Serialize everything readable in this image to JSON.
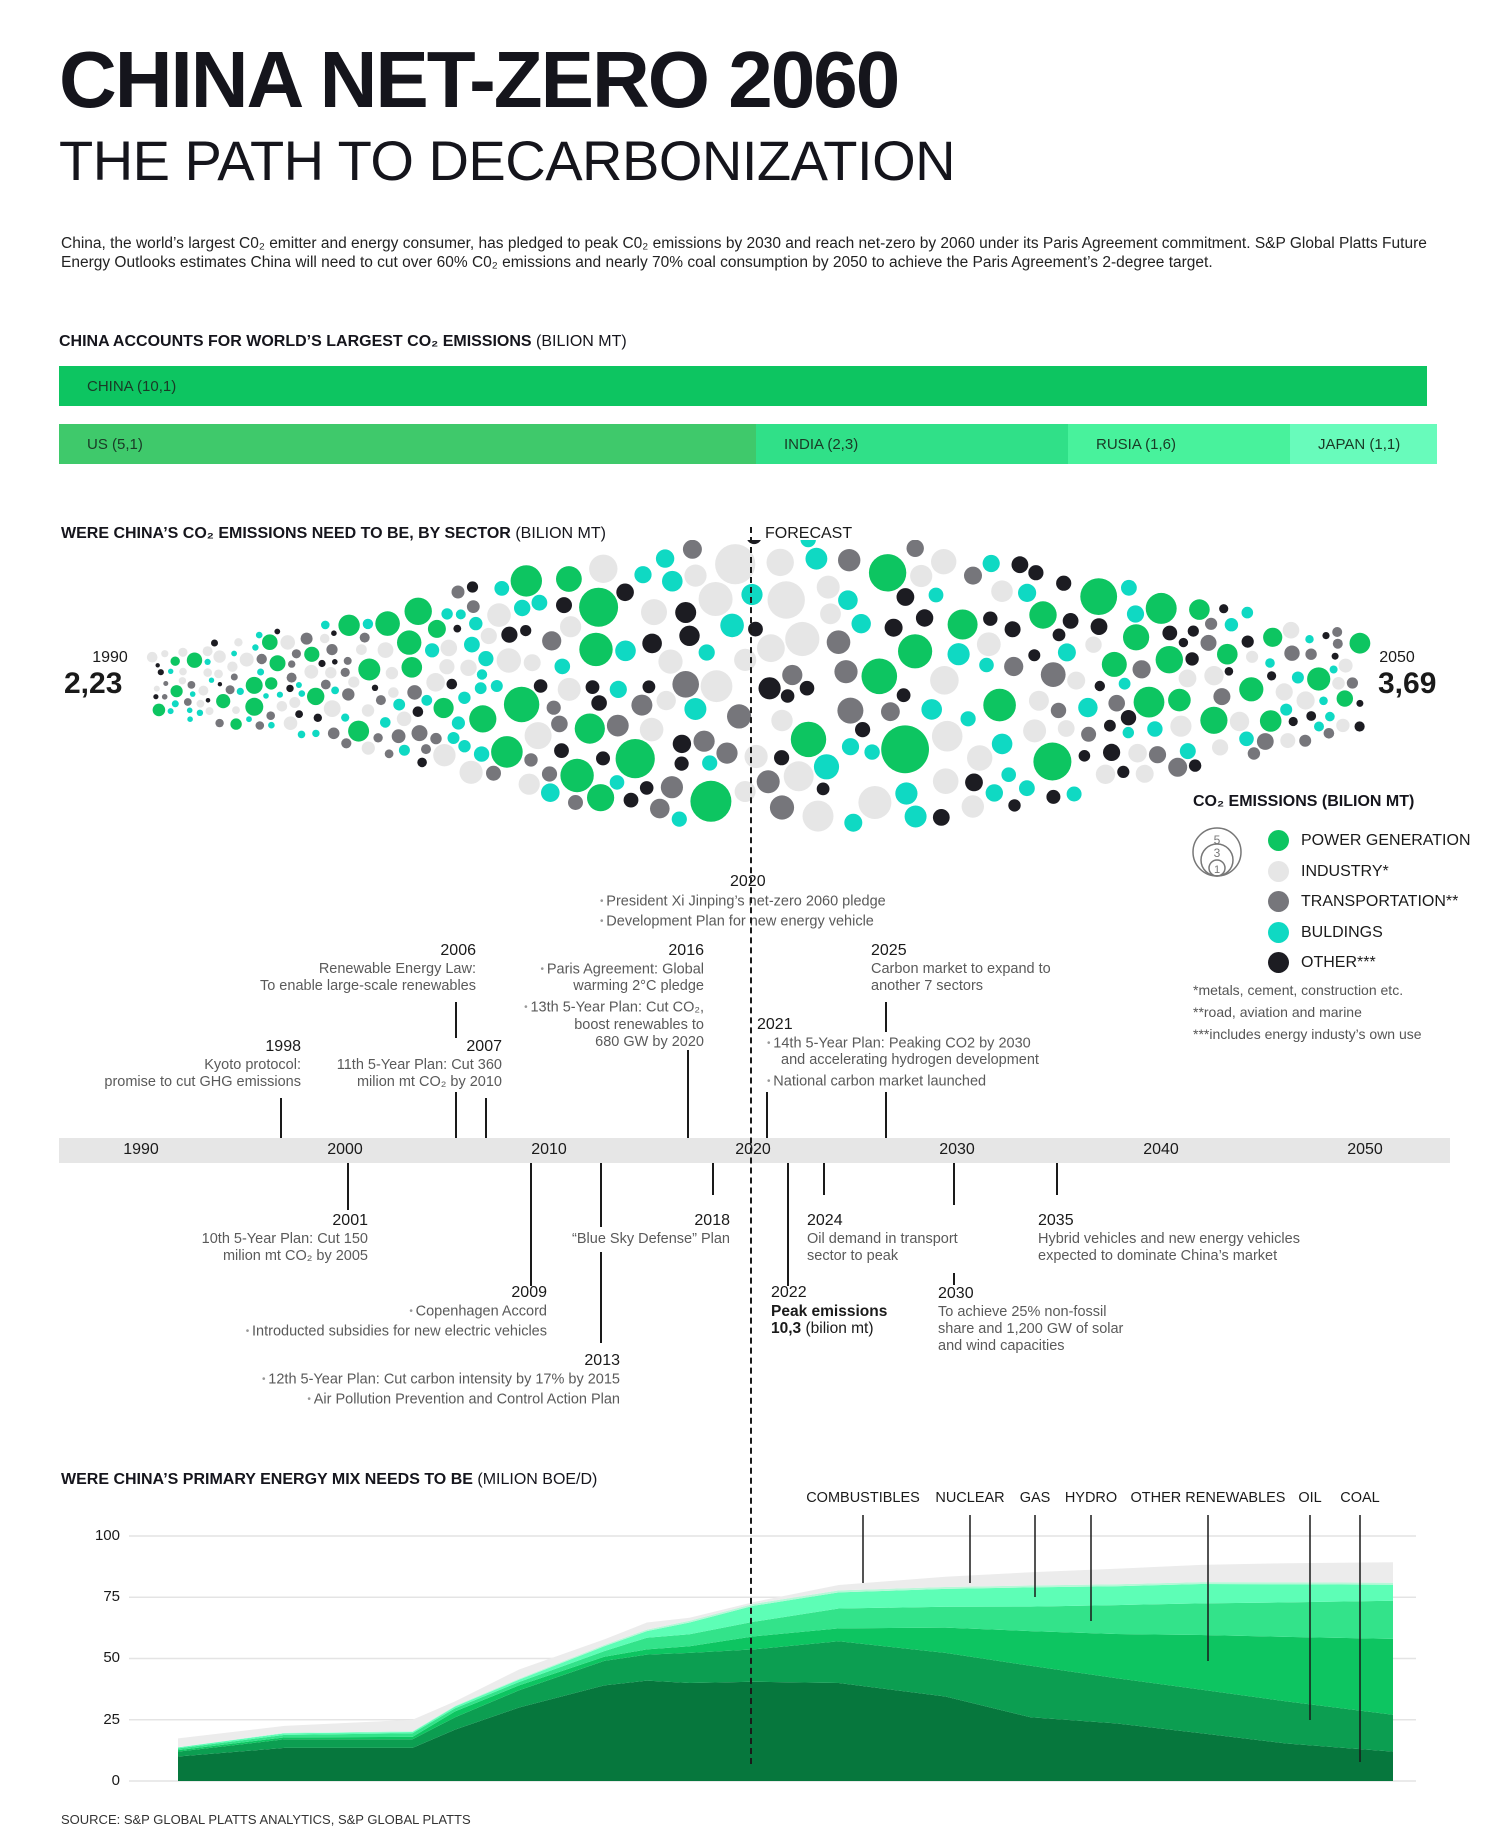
{
  "header": {
    "title": "CHINA NET-ZERO 2060",
    "subtitle": "THE PATH TO DECARBONIZATION",
    "intro": "China, the world’s largest C0₂ emitter and energy consumer, has pledged to peak C0₂ emissions by 2030 and reach net-zero by 2060 under its Paris Agreement commitment. S&P Global Platts Future Energy Outlooks estimates China will need to cut over 60% C0₂ emissions and nearly 70% coal consumption by 2050 to achieve the Paris Agreement’s 2-degree target."
  },
  "chart_data": [
    {
      "type": "bar",
      "title": "CHINA ACCOUNTS FOR WORLD’S LARGEST CO₂ EMISSIONS",
      "unit": "(BILION MT)",
      "categories": [
        "CHINA (10,1)",
        "US (5,1)",
        "INDIA (2,3)",
        "RUSIA (1,6)",
        "JAPAN (1,1)"
      ],
      "values": [
        10.1,
        5.1,
        2.3,
        1.6,
        1.1
      ],
      "colors": [
        "#0dc561",
        "#3fc96b",
        "#30e088",
        "#48f29c",
        "#68fbbb"
      ]
    },
    {
      "type": "scatter",
      "title": "WERE CHINA’S CO₂ EMISSIONS NEED TO BE, BY SECTOR",
      "unit": "(BILION MT)",
      "forecast_label": "FORECAST",
      "start": {
        "year": "1990",
        "value": "2,23"
      },
      "end": {
        "year": "2050",
        "value": "3,69"
      },
      "legend_title": "CO₂ EMISSIONS (BILION MT)",
      "size_legend": [
        "5",
        "3",
        "1"
      ],
      "sectors": [
        {
          "name": "POWER GENERATION",
          "color": "#0dc561"
        },
        {
          "name": "INDUSTRY*",
          "color": "#e6e6e6"
        },
        {
          "name": "TRANSPORTATION**",
          "color": "#76767b"
        },
        {
          "name": "BULDINGS",
          "color": "#0fd9c3"
        },
        {
          "name": "OTHER***",
          "color": "#1c1c22"
        }
      ],
      "footnotes": [
        "*metals, cement, construction etc.",
        "**road, aviation and marine",
        "***includes energy industy’s own use"
      ]
    },
    {
      "type": "area",
      "title": "WERE CHINA’S PRIMARY ENERGY MIX NEEDS TO BE",
      "unit": "(MILION BOE/D)",
      "ylim": [
        0,
        100
      ],
      "yticks": [
        "100",
        "75",
        "50",
        "25",
        "0"
      ],
      "grid": true,
      "x": [
        1993,
        1998,
        2004,
        2006,
        2009,
        2013,
        2015,
        2017,
        2020,
        2024,
        2029,
        2033,
        2037,
        2041,
        2045,
        2050
      ],
      "series": [
        {
          "name": "COAL",
          "color": "#06773d",
          "values": [
            10,
            13.5,
            13.5,
            21,
            30,
            39,
            41,
            40,
            40.5,
            40,
            34.5,
            26,
            23.5,
            19.5,
            15.3,
            12
          ]
        },
        {
          "name": "OIL",
          "color": "#0c9e51",
          "values": [
            2,
            3.5,
            3.5,
            5,
            7,
            10,
            10.6,
            12.3,
            13.2,
            17,
            17.8,
            21,
            18.5,
            17.8,
            17.2,
            15
          ]
        },
        {
          "name": "OTHER RENEWABLES",
          "color": "#0dc561",
          "values": [
            0.6,
            0.8,
            1,
            2.4,
            2,
            1.7,
            2.1,
            2.7,
            5.3,
            5.3,
            10.3,
            14.2,
            18,
            22.3,
            26.3,
            31
          ]
        },
        {
          "name": "HYDRO",
          "color": "#33e38a",
          "values": [
            0.7,
            1,
            1.5,
            1.3,
            1.4,
            2.3,
            4.8,
            4.9,
            6,
            8.1,
            8.5,
            10,
            11.8,
            12.9,
            14.1,
            15.6
          ]
        },
        {
          "name": "GAS",
          "color": "#5dfeb6",
          "values": [
            0.4,
            0.7,
            0.5,
            0.7,
            1,
            2,
            2.7,
            4.8,
            6.5,
            6.6,
            7.3,
            7.8,
            7.7,
            7.9,
            7.4,
            6.5
          ]
        },
        {
          "name": "NUCLEAR",
          "color": "#b8f7d8",
          "values": [
            0.1,
            0.2,
            0.3,
            0.3,
            0.4,
            0.5,
            0.6,
            0.7,
            0.8,
            0.8,
            0.8,
            0.8,
            0.8,
            0.8,
            0.8,
            0.8
          ]
        },
        {
          "name": "COMBUSTIBLES",
          "color": "#ececec",
          "values": [
            3.6,
            2.8,
            4.7,
            1.8,
            3.7,
            2.3,
            2.9,
            1.2,
            0.7,
            2.2,
            4.2,
            5.4,
            6.3,
            7,
            7.8,
            8.4
          ]
        }
      ]
    }
  ],
  "timeline": {
    "axis_years": [
      "1990",
      "2000",
      "2010",
      "2020",
      "2030",
      "2040",
      "2050"
    ],
    "e2020": {
      "year": "2020",
      "items": [
        "President Xi Jinping’s net-zero 2060 pledge",
        "Development Plan for new energy vehicle"
      ]
    },
    "e2006": {
      "year": "2006",
      "lines": [
        "Renewable Energy Law:",
        "To enable large-scale renewables"
      ]
    },
    "e2016": {
      "year": "2016",
      "items": [
        "Paris Agreement: Global",
        "warming 2°C pledge"
      ],
      "items2": [
        "13th 5-Year Plan: Cut CO₂,",
        "boost renewables to",
        "680 GW by 2020"
      ]
    },
    "e1998": {
      "year": "1998",
      "lines": [
        "Kyoto protocol:",
        "promise to cut GHG emissions"
      ]
    },
    "e2007": {
      "year": "2007",
      "lines": [
        "11th 5-Year Plan: Cut 360",
        "milion mt CO₂ by 2010"
      ]
    },
    "e2021": {
      "year": "2021",
      "items": [
        "14th 5-Year Plan: Peaking CO2 by 2030",
        "and accelerating hydrogen development"
      ],
      "items2": [
        "National carbon market launched"
      ]
    },
    "e2025": {
      "year": "2025",
      "lines": [
        "Carbon market to expand to",
        "another 7 sectors"
      ]
    },
    "e2001": {
      "year": "2001",
      "lines": [
        "10th 5-Year Plan: Cut 150",
        "milion mt CO₂ by 2005"
      ]
    },
    "e2009": {
      "year": "2009",
      "items": [
        "Copenhagen Accord",
        "Introducted subsidies for new electric vehicles"
      ]
    },
    "e2013": {
      "year": "2013",
      "items": [
        "12th 5-Year Plan: Cut carbon intensity by 17% by 2015",
        "Air Pollution Prevention and Control Action Plan"
      ]
    },
    "e2018": {
      "year": "2018",
      "lines": [
        "“Blue Sky Defense” Plan"
      ]
    },
    "e2022": {
      "year": "2022",
      "bold": "Peak emissions",
      "value": "10,3",
      "unit": "(bilion mt)"
    },
    "e2024": {
      "year": "2024",
      "lines": [
        "Oil demand in transport",
        "sector to peak"
      ]
    },
    "e2030": {
      "year": "2030",
      "lines": [
        "To achieve 25% non-fossil",
        "share and 1,200 GW of solar",
        "and wind capacities"
      ]
    },
    "e2035": {
      "year": "2035",
      "lines": [
        "Hybrid vehicles and new energy vehicles",
        "expected to dominate China’s market"
      ]
    }
  },
  "footer": {
    "source": "SOURCE: S&P GLOBAL PLATTS ANALYTICS, S&P GLOBAL PLATTS"
  }
}
